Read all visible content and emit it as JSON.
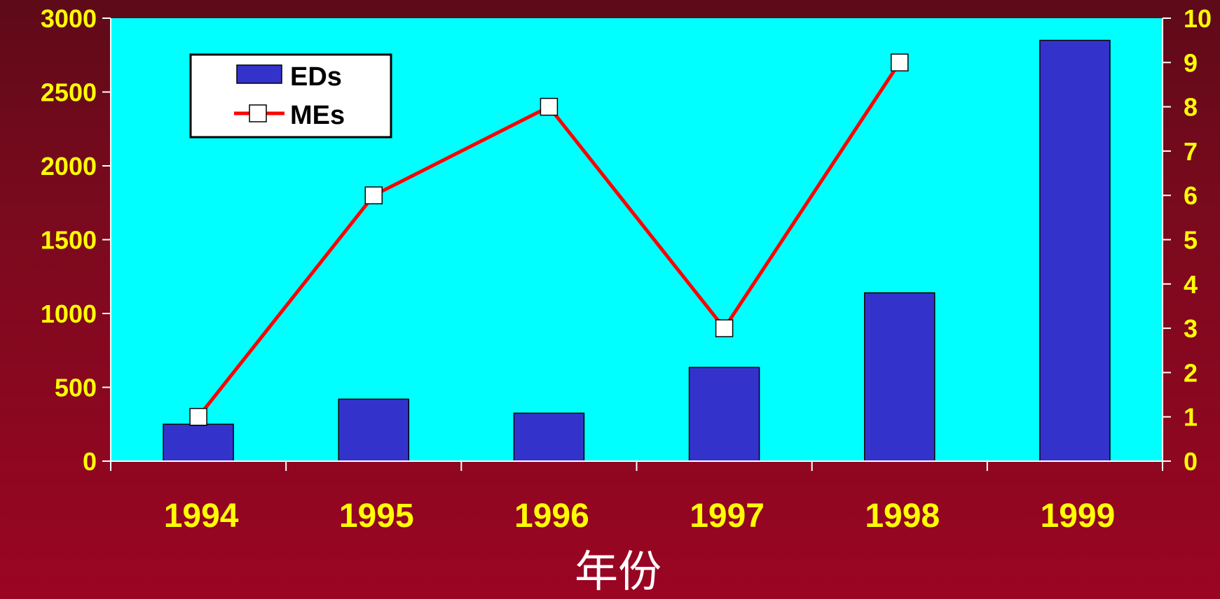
{
  "chart_data": {
    "type": "bar",
    "categories": [
      "1994",
      "1995",
      "1996",
      "1997",
      "1998",
      "1999"
    ],
    "series": [
      {
        "name": "EDs",
        "type": "bar",
        "axis": "left",
        "values": [
          250,
          420,
          325,
          635,
          1140,
          2850
        ]
      },
      {
        "name": "MEs",
        "type": "line",
        "axis": "right",
        "values": [
          1,
          6,
          8,
          3,
          9,
          null
        ]
      }
    ],
    "xlabel": "年份",
    "ylim_left": [
      0,
      3000
    ],
    "ylim_right": [
      0,
      10
    ],
    "yticks_left": [
      "0",
      "500",
      "1000",
      "1500",
      "2000",
      "2500",
      "3000"
    ],
    "yticks_right": [
      "0",
      "1",
      "2",
      "3",
      "4",
      "5",
      "6",
      "7",
      "8",
      "9",
      "10"
    ],
    "legend": {
      "position": "top-left",
      "entries": [
        "EDs",
        "MEs"
      ]
    },
    "grid": false,
    "colors": {
      "plot_background": "#00ffff",
      "bar_fill": "#3333cc",
      "line": "#ff0000",
      "marker_fill": "#ffffff",
      "tick_text": "#ffff00",
      "xlabel_text": "#ffffff"
    }
  }
}
